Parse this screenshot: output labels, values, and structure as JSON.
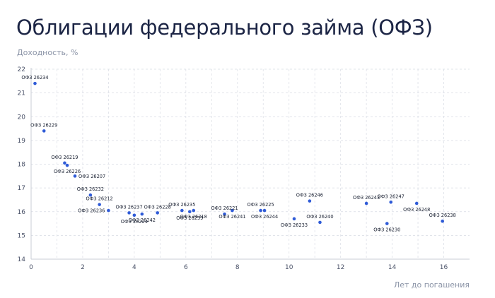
{
  "page": {
    "title": "Облигации федерального займа (ОФЗ)"
  },
  "chart_data": {
    "type": "scatter",
    "title": "Облигации федерального займа (ОФЗ)",
    "xlabel": "Лет до погашения",
    "ylabel": "Доходность, %",
    "xlim": [
      0,
      17
    ],
    "ylim": [
      14,
      22
    ],
    "xticks": [
      0,
      2,
      4,
      6,
      8,
      10,
      12,
      14,
      16
    ],
    "yticks": [
      14,
      15,
      16,
      17,
      18,
      19,
      20,
      21,
      22
    ],
    "grid": true,
    "point_color": "#2f5bd7",
    "points": [
      {
        "label": "ОФЗ 26234",
        "x": 0.15,
        "y": 21.4,
        "pos": "above"
      },
      {
        "label": "ОФЗ 26229",
        "x": 0.5,
        "y": 19.4,
        "pos": "above"
      },
      {
        "label": "ОФЗ 26219",
        "x": 1.3,
        "y": 18.05,
        "pos": "above"
      },
      {
        "label": "ОФЗ 26226",
        "x": 1.4,
        "y": 17.95,
        "pos": "below"
      },
      {
        "label": "ОФЗ 26207",
        "x": 1.7,
        "y": 17.5,
        "pos": "right"
      },
      {
        "label": "ОФЗ 26232",
        "x": 2.3,
        "y": 16.7,
        "pos": "above"
      },
      {
        "label": "ОФЗ 26212",
        "x": 2.65,
        "y": 16.3,
        "pos": "above"
      },
      {
        "label": "ОФЗ 26236",
        "x": 3.0,
        "y": 16.05,
        "pos": "left"
      },
      {
        "label": "ОФЗ 26237",
        "x": 3.8,
        "y": 15.95,
        "pos": "above"
      },
      {
        "label": "ОФЗ 26224",
        "x": 4.0,
        "y": 15.85,
        "pos": "below"
      },
      {
        "label": "ОФЗ 26242",
        "x": 4.3,
        "y": 15.9,
        "pos": "below"
      },
      {
        "label": "ОФЗ 26228",
        "x": 4.9,
        "y": 15.95,
        "pos": "above"
      },
      {
        "label": "ОФЗ 26235",
        "x": 5.85,
        "y": 16.05,
        "pos": "above"
      },
      {
        "label": "ОФЗ 26239",
        "x": 6.15,
        "y": 16.0,
        "pos": "below"
      },
      {
        "label": "ОФЗ 26218",
        "x": 6.3,
        "y": 16.05,
        "pos": "below"
      },
      {
        "label": "ОФЗ 26221",
        "x": 7.5,
        "y": 15.9,
        "pos": "above"
      },
      {
        "label": "ОФЗ 26241",
        "x": 7.8,
        "y": 16.05,
        "pos": "below"
      },
      {
        "label": "ОФЗ 26225",
        "x": 8.9,
        "y": 16.05,
        "pos": "above"
      },
      {
        "label": "ОФЗ 26244",
        "x": 9.05,
        "y": 16.05,
        "pos": "below"
      },
      {
        "label": "ОФЗ 26233",
        "x": 10.2,
        "y": 15.7,
        "pos": "below"
      },
      {
        "label": "ОФЗ 26246",
        "x": 10.8,
        "y": 16.45,
        "pos": "above"
      },
      {
        "label": "ОФЗ 26240",
        "x": 11.2,
        "y": 15.55,
        "pos": "above"
      },
      {
        "label": "ОФЗ 26243",
        "x": 13.0,
        "y": 16.35,
        "pos": "above"
      },
      {
        "label": "ОФЗ 26230",
        "x": 13.8,
        "y": 15.5,
        "pos": "below"
      },
      {
        "label": "ОФЗ 26247",
        "x": 13.95,
        "y": 16.4,
        "pos": "above"
      },
      {
        "label": "ОФЗ 26248",
        "x": 14.95,
        "y": 16.35,
        "pos": "below"
      },
      {
        "label": "ОФЗ 26238",
        "x": 15.95,
        "y": 15.6,
        "pos": "above"
      }
    ]
  }
}
